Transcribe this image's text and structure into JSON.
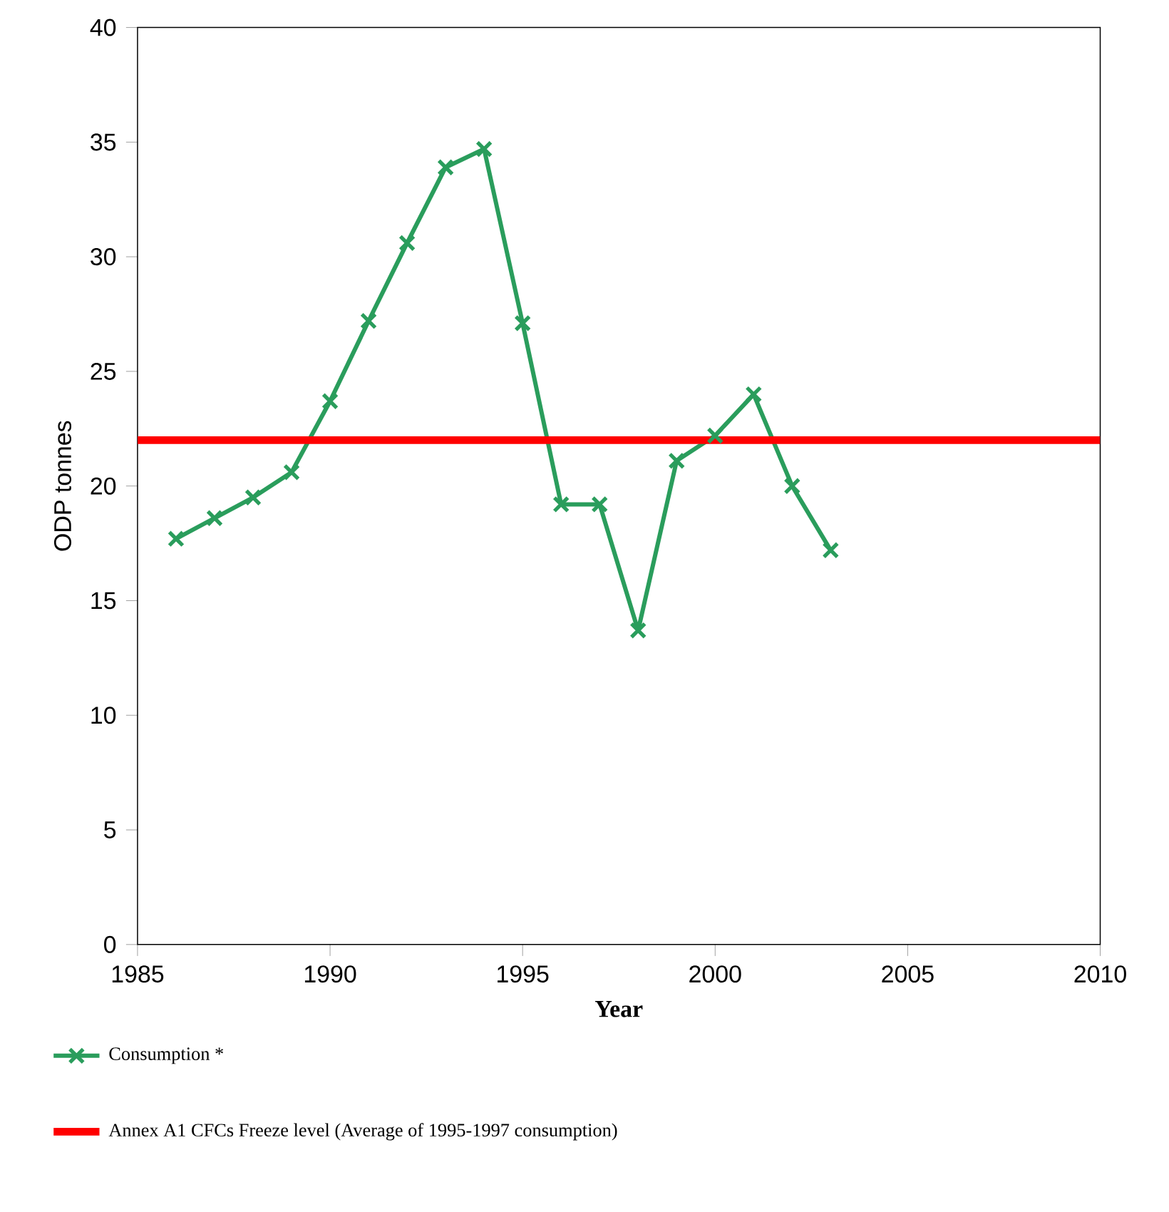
{
  "chart_data": {
    "type": "line",
    "xlabel": "Year",
    "ylabel": "ODP tonnes",
    "x": [
      1986,
      1987,
      1988,
      1989,
      1990,
      1991,
      1992,
      1993,
      1994,
      1995,
      1996,
      1997,
      1998,
      1999,
      2000,
      2001,
      2002,
      2003
    ],
    "series": [
      {
        "name": "Consumption *",
        "color": "#2a9d5c",
        "values": [
          17.7,
          18.6,
          19.5,
          20.6,
          23.7,
          27.2,
          30.6,
          33.9,
          34.7,
          27.1,
          19.2,
          19.2,
          13.7,
          21.1,
          22.2,
          24.0,
          20.0,
          17.2
        ]
      }
    ],
    "ref_lines": [
      {
        "axis": "y",
        "value": 22.0,
        "label": "Annex A1 CFCs Freeze level (Average of 1995-1997 consumption)",
        "color": "#ff0000"
      }
    ],
    "xlim": [
      1985,
      2010
    ],
    "xticks": [
      1985,
      1990,
      1995,
      2000,
      2005,
      2010
    ],
    "ylim": [
      0,
      40
    ],
    "yticks": [
      0,
      5,
      10,
      15,
      20,
      25,
      30,
      35,
      40
    ],
    "marker": "cross",
    "line_style": "solid",
    "grid": false,
    "legend": "bottom"
  }
}
